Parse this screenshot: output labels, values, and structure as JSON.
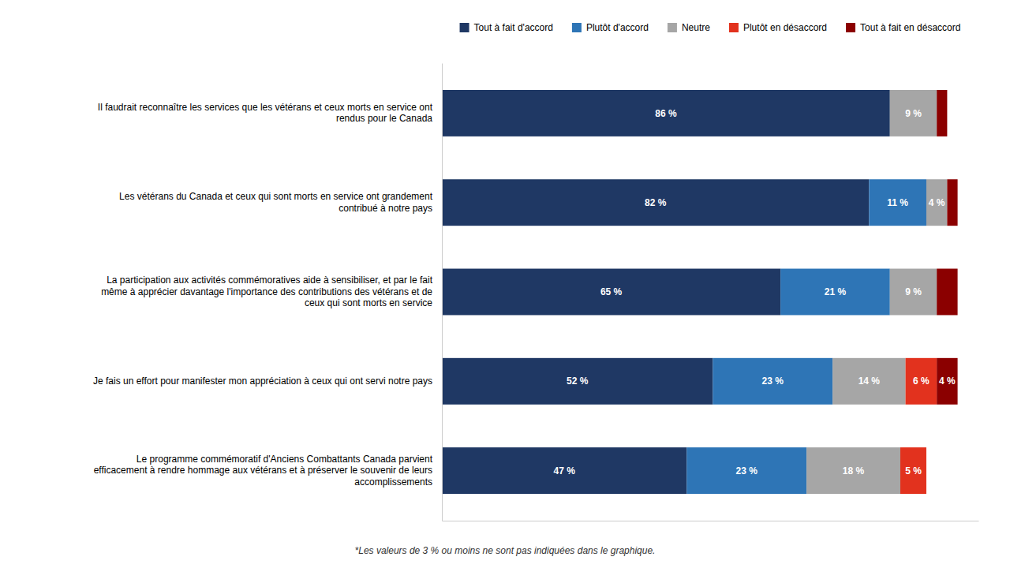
{
  "chart_data": {
    "type": "bar",
    "orientation": "horizontal",
    "stacked": true,
    "categories": [
      "Il faudrait reconnaître les services que les vétérans et ceux morts en service ont\nrendus pour le Canada",
      "Les vétérans du Canada et ceux qui sont morts en service ont grandement\ncontribué à notre pays",
      "La participation aux activités commémoratives aide à sensibiliser, et par le fait\nmême à apprécier davantage l'importance des contributions des vétérans et de\nceux qui sont morts en service",
      "Je fais un effort pour manifester mon appréciation à ceux qui ont servi notre pays",
      "Le programme commémoratif d'Anciens Combattants Canada parvient\nefficacement à rendre hommage aux vétérans et à préserver le souvenir de leurs\naccomplissements"
    ],
    "series": [
      {
        "name": "Tout à fait d'accord",
        "color": "#1f3864",
        "values": [
          86,
          82,
          65,
          52,
          47
        ],
        "value_labels": [
          "86 %",
          "82 %",
          "65 %",
          "52 %",
          "47 %"
        ]
      },
      {
        "name": "Plutôt d'accord",
        "color": "#2e75b6",
        "values": [
          0,
          11,
          21,
          23,
          23
        ],
        "value_labels": [
          null,
          "11 %",
          "21 %",
          "23 %",
          "23 %"
        ]
      },
      {
        "name": "Neutre",
        "color": "#a6a6a6",
        "values": [
          9,
          4,
          9,
          14,
          18
        ],
        "value_labels": [
          "9 %",
          "4 %",
          "9 %",
          "14 %",
          "18 %"
        ]
      },
      {
        "name": "Plutôt en désaccord",
        "color": "#e2321e",
        "values": [
          0,
          0,
          0,
          6,
          5
        ],
        "value_labels": [
          null,
          null,
          null,
          "6 %",
          "5 %"
        ]
      },
      {
        "name": "Tout à fait en désaccord",
        "color": "#8b0000",
        "values": [
          2,
          2,
          4,
          4,
          0
        ],
        "value_labels": [
          null,
          null,
          null,
          "4 %",
          null
        ]
      }
    ],
    "xlim": [
      0,
      103
    ],
    "tick_labels": false,
    "grid": false,
    "legend": "top",
    "data_labels": true,
    "annotations": [
      "*Les valeurs de 3 % ou moins ne sont pas indiquées dans le graphique."
    ]
  }
}
